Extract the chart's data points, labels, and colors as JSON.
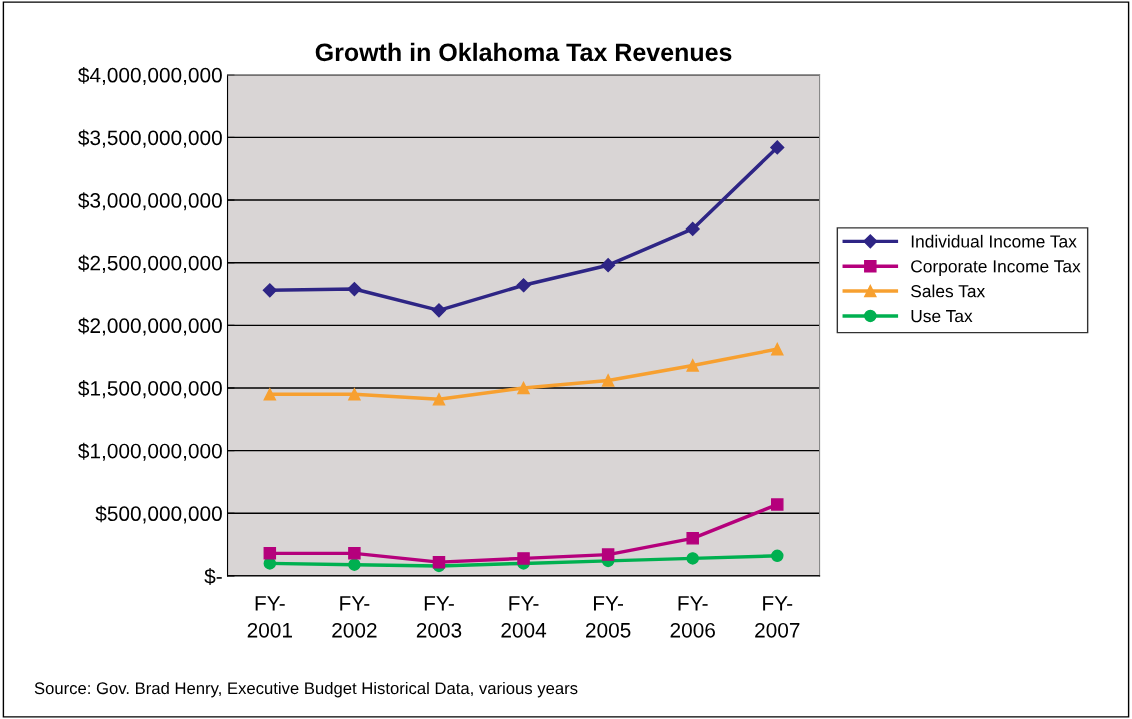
{
  "chart_data": {
    "type": "line",
    "title": "Growth in Oklahoma Tax Revenues",
    "categories": [
      "FY-\n2001",
      "FY-\n2002",
      "FY-\n2003",
      "FY-\n2004",
      "FY-\n2005",
      "FY-\n2006",
      "FY-\n2007"
    ],
    "series": [
      {
        "name": "Individual Income Tax",
        "color": "#2e2585",
        "marker": "diamond",
        "values": [
          2280000000,
          2290000000,
          2120000000,
          2320000000,
          2480000000,
          2770000000,
          3420000000
        ]
      },
      {
        "name": "Corporate Income Tax",
        "color": "#b5007c",
        "marker": "square",
        "values": [
          180000000,
          180000000,
          110000000,
          140000000,
          170000000,
          300000000,
          570000000
        ]
      },
      {
        "name": "Sales Tax",
        "color": "#f7a030",
        "marker": "triangle",
        "values": [
          1450000000,
          1450000000,
          1410000000,
          1500000000,
          1560000000,
          1680000000,
          1810000000
        ]
      },
      {
        "name": "Use Tax",
        "color": "#00b050",
        "marker": "circle",
        "values": [
          100000000,
          90000000,
          80000000,
          100000000,
          120000000,
          140000000,
          160000000
        ]
      }
    ],
    "ylim": [
      0,
      4000000000
    ],
    "yticks": [
      {
        "value": 0,
        "label": "$-"
      },
      {
        "value": 500000000,
        "label": "$500,000,000"
      },
      {
        "value": 1000000000,
        "label": "$1,000,000,000"
      },
      {
        "value": 1500000000,
        "label": "$1,500,000,000"
      },
      {
        "value": 2000000000,
        "label": "$2,000,000,000"
      },
      {
        "value": 2500000000,
        "label": "$2,500,000,000"
      },
      {
        "value": 3000000000,
        "label": "$3,000,000,000"
      },
      {
        "value": 3500000000,
        "label": "$3,500,000,000"
      },
      {
        "value": 4000000000,
        "label": "$4,000,000,000"
      }
    ],
    "grid": "y",
    "legend": "right",
    "line_style": "solid",
    "annotations": [
      "Source: Gov. Brad Henry, Executive Budget Historical Data, various years"
    ]
  }
}
